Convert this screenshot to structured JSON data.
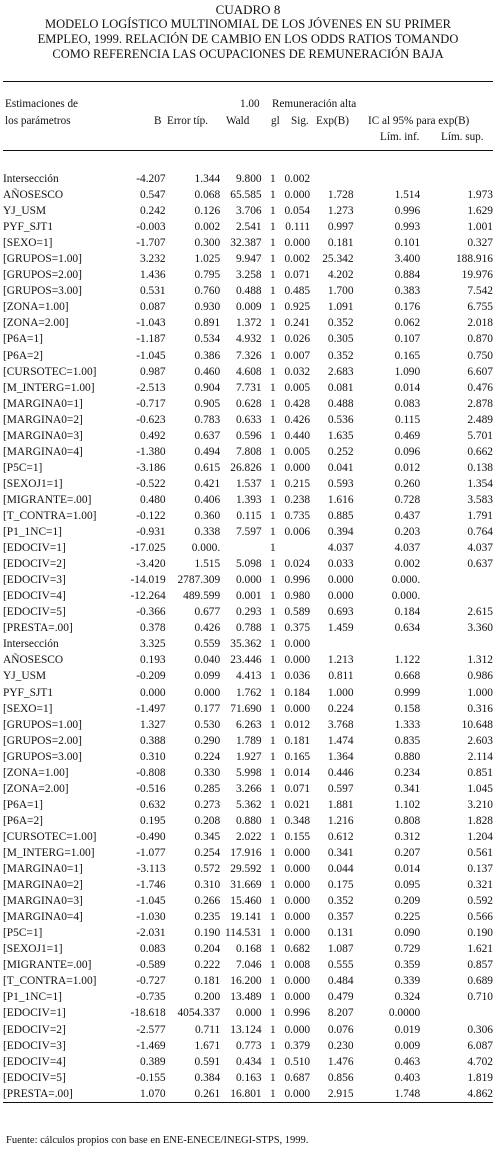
{
  "title": {
    "line1": "CUADRO 8",
    "line2": "MODELO LOGÍSTICO MULTINOMIAL DE LOS JÓVENES EN SU PRIMER",
    "line3": "EMPLEO, 1999. RELACIÓN DE CAMBIO EN LOS ODDS RATIOS TOMANDO",
    "line4": "COMO REFERENCIA LAS OCUPACIONES DE REMUNERACIÓN BAJA"
  },
  "header": {
    "est1": "Estimaciones de",
    "est2": "los parámetros",
    "b": "B",
    "error": "Error típ.",
    "wald": "Wald",
    "gl": "gl",
    "sig": "Sig.",
    "expb": "Exp(B)",
    "one": "1.00",
    "remun": "Remuneración alta",
    "ic": "IC al 95% para exp(B)",
    "liminf": "Lím. inf.",
    "limsup": "Lím. sup."
  },
  "rows": [
    [
      "Intersección",
      "-4.207",
      "1.344",
      "9.800",
      "1",
      "0.002",
      "",
      "",
      ""
    ],
    [
      "AÑOSESCO",
      "0.547",
      "0.068",
      "65.585",
      "1",
      "0.000",
      "1.728",
      "1.514",
      "1.973"
    ],
    [
      "YJ_USM",
      "0.242",
      "0.126",
      "3.706",
      "1",
      "0.054",
      "1.273",
      "0.996",
      "1.629"
    ],
    [
      "PYF_SJT1",
      "-0.003",
      "0.002",
      "2.541",
      "1",
      "0.111",
      "0.997",
      "0.993",
      "1.001"
    ],
    [
      "[SEXO=1]",
      "-1.707",
      "0.300",
      "32.387",
      "1",
      "0.000",
      "0.181",
      "0.101",
      "0.327"
    ],
    [
      "[GRUPOS=1.00]",
      "3.232",
      "1.025",
      "9.947",
      "1",
      "0.002",
      "25.342",
      "3.400",
      "188.916"
    ],
    [
      "[GRUPOS=2.00]",
      "1.436",
      "0.795",
      "3.258",
      "1",
      "0.071",
      "4.202",
      "0.884",
      "19.976"
    ],
    [
      "[GRUPOS=3.00]",
      "0.531",
      "0.760",
      "0.488",
      "1",
      "0.485",
      "1.700",
      "0.383",
      "7.542"
    ],
    [
      "[ZONA=1.00]",
      "0.087",
      "0.930",
      "0.009",
      "1",
      "0.925",
      "1.091",
      "0.176",
      "6.755"
    ],
    [
      "[ZONA=2.00]",
      "-1.043",
      "0.891",
      "1.372",
      "1",
      "0.241",
      "0.352",
      "0.062",
      "2.018"
    ],
    [
      "[P6A=1]",
      "-1.187",
      "0.534",
      "4.932",
      "1",
      "0.026",
      "0.305",
      "0.107",
      "0.870"
    ],
    [
      "[P6A=2]",
      "-1.045",
      "0.386",
      "7.326",
      "1",
      "0.007",
      "0.352",
      "0.165",
      "0.750"
    ],
    [
      "[CURSOTEC=1.00]",
      "0.987",
      "0.460",
      "4.608",
      "1",
      "0.032",
      "2.683",
      "1.090",
      "6.607"
    ],
    [
      "[M_INTERG=1.00]",
      "-2.513",
      "0.904",
      "7.731",
      "1",
      "0.005",
      "0.081",
      "0.014",
      "0.476"
    ],
    [
      "[MARGINA0=1]",
      "-0.717",
      "0.905",
      "0.628",
      "1",
      "0.428",
      "0.488",
      "0.083",
      "2.878"
    ],
    [
      "[MARGINA0=2]",
      "-0.623",
      "0.783",
      "0.633",
      "1",
      "0.426",
      "0.536",
      "0.115",
      "2.489"
    ],
    [
      "[MARGINA0=3]",
      "0.492",
      "0.637",
      "0.596",
      "1",
      "0.440",
      "1.635",
      "0.469",
      "5.701"
    ],
    [
      "[MARGINA0=4]",
      "-1.380",
      "0.494",
      "7.808",
      "1",
      "0.005",
      "0.252",
      "0.096",
      "0.662"
    ],
    [
      "[P5C=1]",
      "-3.186",
      "0.615",
      "26.826",
      "1",
      "0.000",
      "0.041",
      "0.012",
      "0.138"
    ],
    [
      "[SEXOJ1=1]",
      "-0.522",
      "0.421",
      "1.537",
      "1",
      "0.215",
      "0.593",
      "0.260",
      "1.354"
    ],
    [
      "[MIGRANTE=.00]",
      "0.480",
      "0.406",
      "1.393",
      "1",
      "0.238",
      "1.616",
      "0.728",
      "3.583"
    ],
    [
      "[T_CONTRA=1.00]",
      "-0.122",
      "0.360",
      "0.115",
      "1",
      "0.735",
      "0.885",
      "0.437",
      "1.791"
    ],
    [
      "[P1_1NC=1]",
      "-0.931",
      "0.338",
      "7.597",
      "1",
      "0.006",
      "0.394",
      "0.203",
      "0.764"
    ],
    [
      "[EDOCIV=1]",
      "-17.025",
      "0.000.",
      "",
      "1",
      "",
      "4.037",
      "4.037",
      "4.037"
    ],
    [
      "[EDOCIV=2]",
      "-3.420",
      "1.515",
      "5.098",
      "1",
      "0.024",
      "0.033",
      "0.002",
      "0.637"
    ],
    [
      "[EDOCIV=3]",
      "-14.019",
      "2787.309",
      "0.000",
      "1",
      "0.996",
      "0.000",
      "0.000.",
      ""
    ],
    [
      "[EDOCIV=4]",
      "-12.264",
      "489.599",
      "0.001",
      "1",
      "0.980",
      "0.000",
      "0.000.",
      ""
    ],
    [
      "[EDOCIV=5]",
      "-0.366",
      "0.677",
      "0.293",
      "1",
      "0.589",
      "0.693",
      "0.184",
      "2.615"
    ],
    [
      "[PRESTA=.00]",
      "0.378",
      "0.426",
      "0.788",
      "1",
      "0.375",
      "1.459",
      "0.634",
      "3.360"
    ],
    [
      "Intersección",
      "3.325",
      "0.559",
      "35.362",
      "1",
      "0.000",
      "",
      "",
      ""
    ],
    [
      "AÑOSESCO",
      "0.193",
      "0.040",
      "23.446",
      "1",
      "0.000",
      "1.213",
      "1.122",
      "1.312"
    ],
    [
      "YJ_USM",
      "-0.209",
      "0.099",
      "4.413",
      "1",
      "0.036",
      "0.811",
      "0.668",
      "0.986"
    ],
    [
      "PYF_SJT1",
      "0.000",
      "0.000",
      "1.762",
      "1",
      "0.184",
      "1.000",
      "0.999",
      "1.000"
    ],
    [
      "[SEXO=1]",
      "-1.497",
      "0.177",
      "71.690",
      "1",
      "0.000",
      "0.224",
      "0.158",
      "0.316"
    ],
    [
      "[GRUPOS=1.00]",
      "1.327",
      "0.530",
      "6.263",
      "1",
      "0.012",
      "3.768",
      "1.333",
      "10.648"
    ],
    [
      "[GRUPOS=2.00]",
      "0.388",
      "0.290",
      "1.789",
      "1",
      "0.181",
      "1.474",
      "0.835",
      "2.603"
    ],
    [
      "[GRUPOS=3.00]",
      "0.310",
      "0.224",
      "1.927",
      "1",
      "0.165",
      "1.364",
      "0.880",
      "2.114"
    ],
    [
      "[ZONA=1.00]",
      "-0.808",
      "0.330",
      "5.998",
      "1",
      "0.014",
      "0.446",
      "0.234",
      "0.851"
    ],
    [
      "[ZONA=2.00]",
      "-0.516",
      "0.285",
      "3.266",
      "1",
      "0.071",
      "0.597",
      "0.341",
      "1.045"
    ],
    [
      "[P6A=1]",
      "0.632",
      "0.273",
      "5.362",
      "1",
      "0.021",
      "1.881",
      "1.102",
      "3.210"
    ],
    [
      "[P6A=2]",
      "0.195",
      "0.208",
      "0.880",
      "1",
      "0.348",
      "1.216",
      "0.808",
      "1.828"
    ],
    [
      "[CURSOTEC=1.00]",
      "-0.490",
      "0.345",
      "2.022",
      "1",
      "0.155",
      "0.612",
      "0.312",
      "1.204"
    ],
    [
      "[M_INTERG=1.00]",
      "-1.077",
      "0.254",
      "17.916",
      "1",
      "0.000",
      "0.341",
      "0.207",
      "0.561"
    ],
    [
      "[MARGINA0=1]",
      "-3.113",
      "0.572",
      "29.592",
      "1",
      "0.000",
      "0.044",
      "0.014",
      "0.137"
    ],
    [
      "[MARGINA0=2]",
      "-1.746",
      "0.310",
      "31.669",
      "1",
      "0.000",
      "0.175",
      "0.095",
      "0.321"
    ],
    [
      "[MARGINA0=3]",
      "-1.045",
      "0.266",
      "15.460",
      "1",
      "0.000",
      "0.352",
      "0.209",
      "0.592"
    ],
    [
      "[MARGINA0=4]",
      "-1.030",
      "0.235",
      "19.141",
      "1",
      "0.000",
      "0.357",
      "0.225",
      "0.566"
    ],
    [
      "[P5C=1]",
      "-2.031",
      "0.190",
      "114.531",
      "1",
      "0.000",
      "0.131",
      "0.090",
      "0.190"
    ],
    [
      "[SEXOJ1=1]",
      "0.083",
      "0.204",
      "0.168",
      "1",
      "0.682",
      "1.087",
      "0.729",
      "1.621"
    ],
    [
      "[MIGRANTE=.00]",
      "-0.589",
      "0.222",
      "7.046",
      "1",
      "0.008",
      "0.555",
      "0.359",
      "0.857"
    ],
    [
      "[T_CONTRA=1.00]",
      "-0.727",
      "0.181",
      "16.200",
      "1",
      "0.000",
      "0.484",
      "0.339",
      "0.689"
    ],
    [
      "[P1_1NC=1]",
      "-0.735",
      "0.200",
      "13.489",
      "1",
      "0.000",
      "0.479",
      "0.324",
      "0.710"
    ],
    [
      "[EDOCIV=1]",
      "-18.618",
      "4054.337",
      "0.000",
      "1",
      "0.996",
      "8.207",
      "0.0000",
      ""
    ],
    [
      "[EDOCIV=2]",
      "-2.577",
      "0.711",
      "13.124",
      "1",
      "0.000",
      "0.076",
      "0.019",
      "0.306"
    ],
    [
      "[EDOCIV=3]",
      "-1.469",
      "1.671",
      "0.773",
      "1",
      "0.379",
      "0.230",
      "0.009",
      "6.087"
    ],
    [
      "[EDOCIV=4]",
      "0.389",
      "0.591",
      "0.434",
      "1",
      "0.510",
      "1.476",
      "0.463",
      "4.702"
    ],
    [
      "[EDOCIV=5]",
      "-0.155",
      "0.384",
      "0.163",
      "1",
      "0.687",
      "0.856",
      "0.403",
      "1.819"
    ],
    [
      "[PRESTA=.00]",
      "1.070",
      "0.261",
      "16.801",
      "1",
      "0.000",
      "2.915",
      "1.748",
      "4.862"
    ]
  ],
  "source": "Fuente: cálculos propios con base en ENE-ENECE/INEGI-STPS, 1999."
}
